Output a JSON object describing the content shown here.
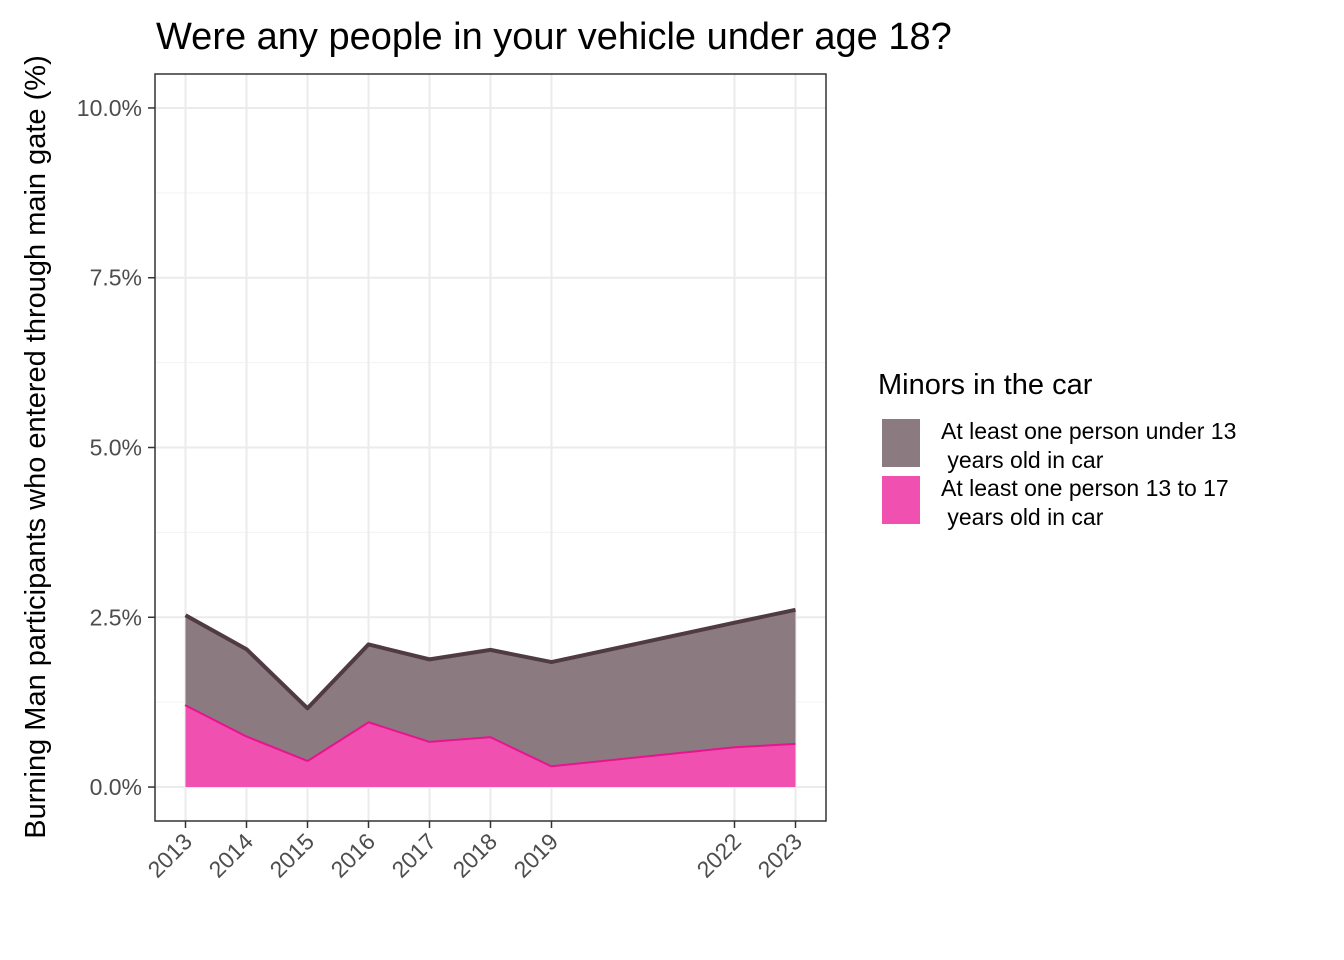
{
  "chart_data": {
    "type": "area",
    "stacked": true,
    "title": "Were any people in your vehicle under age 18?",
    "xlabel": "",
    "ylabel": "Burning Man participants who entered through main gate (%)",
    "x": [
      2013,
      2014,
      2015,
      2016,
      2017,
      2018,
      2019,
      2022,
      2023
    ],
    "x_tick_labels": [
      "2013",
      "2014",
      "2015",
      "2016",
      "2017",
      "2018",
      "2019",
      "2022",
      "2023"
    ],
    "ylim": [
      -0.5,
      10.5
    ],
    "y_ticks": [
      0,
      2.5,
      5,
      7.5,
      10
    ],
    "y_tick_labels": [
      "0.0%",
      "2.5%",
      "5.0%",
      "7.5%",
      "10.0%"
    ],
    "grid": true,
    "legend": {
      "title": "Minors in the car",
      "placement": "right"
    },
    "series": [
      {
        "name": "At least one person 13 to 17\n years old in car",
        "values": [
          1.22,
          0.76,
          0.4,
          0.97,
          0.68,
          0.75,
          0.32,
          0.6,
          0.65
        ],
        "fill": "#f050b0",
        "line": "#e6158f"
      },
      {
        "name": "At least one person under 13\n years old in car",
        "values": [
          1.31,
          1.27,
          0.76,
          1.13,
          1.2,
          1.27,
          1.52,
          1.82,
          1.96
        ],
        "fill": "#8b7b80",
        "line": "#503b45"
      }
    ]
  }
}
